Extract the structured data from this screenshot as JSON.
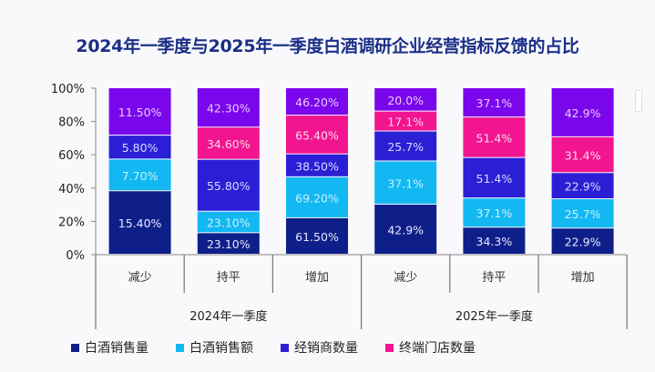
{
  "chart_data": {
    "type": "bar",
    "stacked": true,
    "normalized": true,
    "title": "2024年一季度与2025年一季度白酒调研企业经营指标反馈的占比",
    "xlabel": "",
    "ylabel": "",
    "ylim": [
      0,
      100
    ],
    "yticks": [
      "0%",
      "20%",
      "40%",
      "60%",
      "80%",
      "100%"
    ],
    "categories": [
      "减少",
      "持平",
      "增加",
      "减少",
      "持平",
      "增加"
    ],
    "groups": [
      {
        "label": "2024年一季度",
        "span": [
          0,
          2
        ]
      },
      {
        "label": "2025年一季度",
        "span": [
          3,
          5
        ]
      }
    ],
    "series": [
      {
        "name": "白酒销售量",
        "color": "#0f1f8a",
        "label_color": "#e6e9ff",
        "values": [
          15.4,
          23.1,
          61.5,
          42.9,
          34.3,
          22.9
        ],
        "labels": [
          "15.40%",
          "23.10%",
          "61.50%",
          "42.9%",
          "34.3%",
          "22.9%"
        ]
      },
      {
        "name": "白酒销售额",
        "color": "#13b8f2",
        "label_color": "#c9f1ff",
        "values": [
          7.7,
          23.1,
          69.2,
          37.1,
          37.1,
          25.7
        ],
        "labels": [
          "7.70%",
          "23.10%",
          "69.20%",
          "37.1%",
          "37.1%",
          "25.7%"
        ]
      },
      {
        "name": "经销商数量",
        "color": "#2b1fd6",
        "label_color": "#dcd8ff",
        "values": [
          5.8,
          55.8,
          38.5,
          25.7,
          51.4,
          22.9
        ],
        "labels": [
          "5.80%",
          "55.80%",
          "38.50%",
          "25.7%",
          "51.4%",
          "22.9%"
        ]
      },
      {
        "name": "终端门店数量",
        "color": "#f2158f",
        "label_color": "#ffd6ec",
        "values": [
          0,
          34.6,
          65.4,
          17.1,
          51.4,
          31.4
        ],
        "labels": [
          "",
          "34.60%",
          "65.40%",
          "17.1%",
          "51.4%",
          "31.4%"
        ]
      },
      {
        "name": "",
        "color": "#7a06ec",
        "label_color": "#e9c9ff",
        "values": [
          11.5,
          42.3,
          46.2,
          20.0,
          37.1,
          42.9
        ],
        "labels": [
          "11.50%",
          "42.30%",
          "46.20%",
          "20.0%",
          "37.1%",
          "42.9%"
        ]
      }
    ],
    "legend": {
      "position": "bottom",
      "entries": [
        "白酒销售量",
        "白酒销售额",
        "经销商数量",
        "终端门店数量"
      ]
    },
    "grid": false
  }
}
